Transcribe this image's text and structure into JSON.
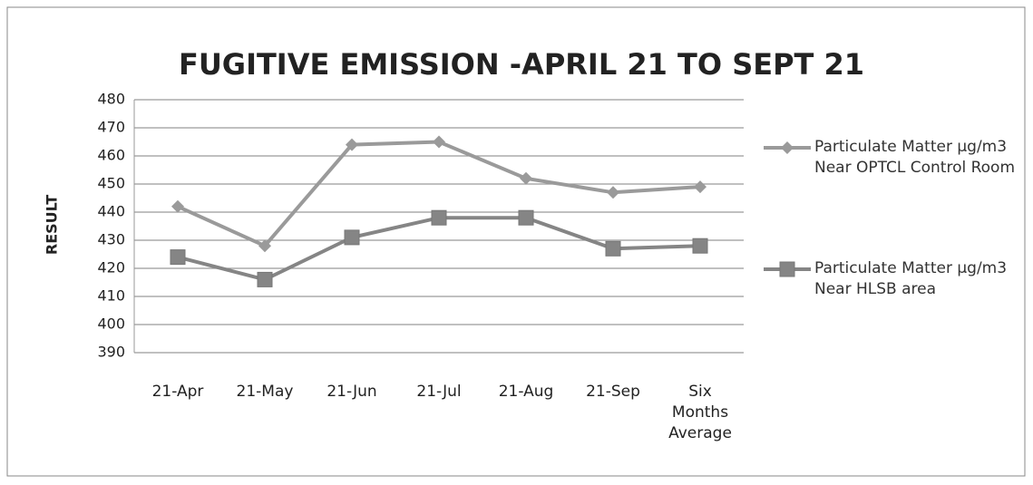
{
  "chart_data": {
    "type": "line",
    "title": "FUGITIVE EMISSION -APRIL 21 TO SEPT 21",
    "y_label": "RESULT",
    "categories": [
      "21-Apr",
      "21-May",
      "21-Jun",
      "21-Jul",
      "21-Aug",
      "21-Sep",
      "Six Months Average"
    ],
    "series": [
      {
        "name": "Particulate Matter µg/m3 Near OPTCL Control Room",
        "color": "#9a9a9a",
        "marker": "diamond",
        "values": [
          442,
          428,
          464,
          465,
          452,
          447,
          449
        ]
      },
      {
        "name": "Particulate Matter µg/m3 Near HLSB area",
        "color": "#858585",
        "marker": "square",
        "values": [
          424,
          416,
          431,
          438,
          438,
          427,
          428
        ]
      }
    ],
    "ylim": [
      390,
      480
    ],
    "yticks": [
      390,
      400,
      410,
      420,
      430,
      440,
      450,
      460,
      470,
      480
    ],
    "grid": true,
    "legend": "right"
  }
}
